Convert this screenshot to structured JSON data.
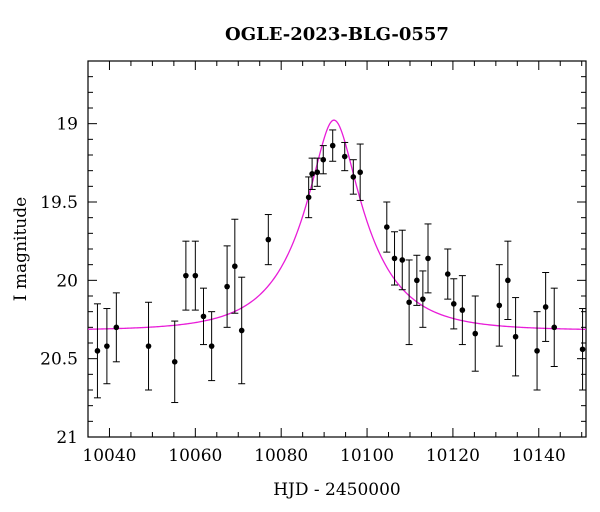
{
  "chart_data": {
    "type": "scatter",
    "title": "OGLE-2023-BLG-0557",
    "xlabel": "HJD - 2450000",
    "ylabel": "I magnitude",
    "xlim": [
      10035,
      10151
    ],
    "ylim": [
      21,
      18.6
    ],
    "y_inverted": true,
    "grid": false,
    "x_ticks": [
      10040,
      10060,
      10080,
      10100,
      10120,
      10140
    ],
    "y_ticks": [
      19,
      19.5,
      20,
      20.5,
      21
    ],
    "x_tick_labels": [
      "10040",
      "10060",
      "10080",
      "10100",
      "10120",
      "10140"
    ],
    "y_tick_labels": [
      "19",
      "19.5",
      "20",
      "20.5",
      "21"
    ],
    "series": [
      {
        "kind": "observations",
        "color": "#000000",
        "points": [
          {
            "x": 10037.2,
            "y": 20.45,
            "err": 0.3
          },
          {
            "x": 10039.4,
            "y": 20.42,
            "err": 0.24
          },
          {
            "x": 10041.6,
            "y": 20.3,
            "err": 0.22
          },
          {
            "x": 10049.1,
            "y": 20.42,
            "err": 0.28
          },
          {
            "x": 10055.2,
            "y": 20.52,
            "err": 0.26
          },
          {
            "x": 10057.8,
            "y": 19.97,
            "err": 0.22
          },
          {
            "x": 10060.0,
            "y": 19.97,
            "err": 0.22
          },
          {
            "x": 10061.9,
            "y": 20.23,
            "err": 0.18
          },
          {
            "x": 10063.8,
            "y": 20.42,
            "err": 0.22
          },
          {
            "x": 10067.4,
            "y": 20.04,
            "err": 0.26
          },
          {
            "x": 10069.2,
            "y": 19.91,
            "err": 0.3
          },
          {
            "x": 10070.8,
            "y": 20.32,
            "err": 0.34
          },
          {
            "x": 10077.0,
            "y": 19.74,
            "err": 0.16
          },
          {
            "x": 10086.4,
            "y": 19.47,
            "err": 0.13
          },
          {
            "x": 10087.2,
            "y": 19.32,
            "err": 0.1
          },
          {
            "x": 10088.4,
            "y": 19.31,
            "err": 0.09
          },
          {
            "x": 10089.8,
            "y": 19.23,
            "err": 0.09
          },
          {
            "x": 10092.0,
            "y": 19.14,
            "err": 0.1
          },
          {
            "x": 10094.8,
            "y": 19.21,
            "err": 0.09
          },
          {
            "x": 10096.8,
            "y": 19.34,
            "err": 0.11
          },
          {
            "x": 10098.4,
            "y": 19.31,
            "err": 0.18
          },
          {
            "x": 10104.6,
            "y": 19.66,
            "err": 0.16
          },
          {
            "x": 10106.4,
            "y": 19.86,
            "err": 0.17
          },
          {
            "x": 10108.2,
            "y": 19.87,
            "err": 0.19
          },
          {
            "x": 10109.8,
            "y": 20.14,
            "err": 0.27
          },
          {
            "x": 10111.6,
            "y": 20.0,
            "err": 0.16
          },
          {
            "x": 10113.0,
            "y": 20.12,
            "err": 0.18
          },
          {
            "x": 10114.2,
            "y": 19.86,
            "err": 0.22
          },
          {
            "x": 10118.8,
            "y": 19.96,
            "err": 0.16
          },
          {
            "x": 10120.2,
            "y": 20.15,
            "err": 0.16
          },
          {
            "x": 10122.2,
            "y": 20.19,
            "err": 0.22
          },
          {
            "x": 10125.2,
            "y": 20.34,
            "err": 0.24
          },
          {
            "x": 10130.8,
            "y": 20.16,
            "err": 0.26
          },
          {
            "x": 10132.8,
            "y": 20.0,
            "err": 0.25
          },
          {
            "x": 10134.6,
            "y": 20.36,
            "err": 0.25
          },
          {
            "x": 10139.6,
            "y": 20.45,
            "err": 0.25
          },
          {
            "x": 10141.6,
            "y": 20.17,
            "err": 0.22
          },
          {
            "x": 10143.6,
            "y": 20.3,
            "err": 0.25
          },
          {
            "x": 10150.2,
            "y": 20.44,
            "err": 0.26
          }
        ]
      },
      {
        "kind": "model",
        "color": "#e81cd8",
        "model": {
          "t0": 10092.3,
          "u0": 0.3,
          "tE": 15.0,
          "baseline_mag": 20.32
        }
      }
    ]
  }
}
